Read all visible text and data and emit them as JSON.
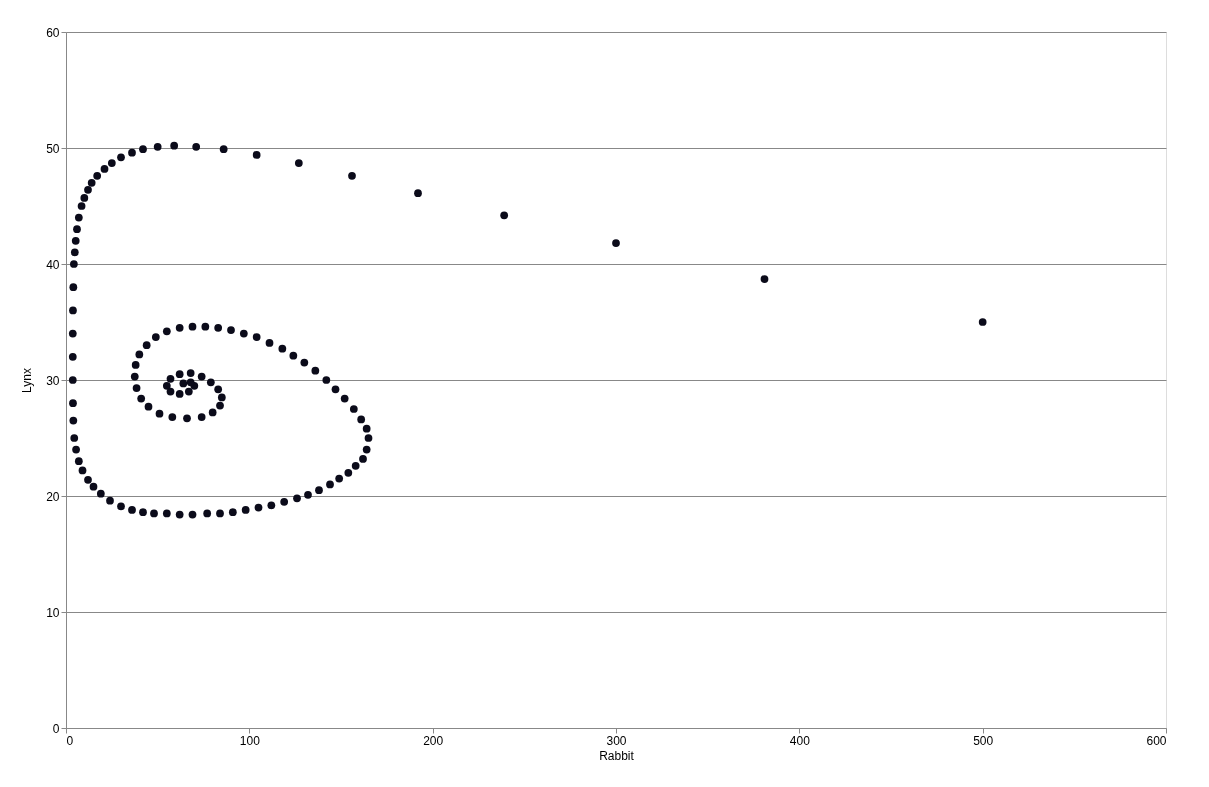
{
  "chart_data": {
    "type": "scatter",
    "xlabel": "Rabbit",
    "ylabel": "Lynx",
    "xlim": [
      0,
      600
    ],
    "ylim": [
      0,
      60
    ],
    "xticks": [
      0,
      100,
      200,
      300,
      400,
      500,
      600
    ],
    "yticks": [
      0,
      10,
      20,
      30,
      40,
      50,
      60
    ],
    "grid": "y",
    "marker": "circle",
    "series": [
      {
        "color": "#0b0b1a",
        "x": [
          500,
          381,
          300,
          239,
          192,
          156,
          127,
          104,
          86,
          71,
          59,
          50,
          42,
          36,
          30,
          25,
          21,
          17,
          14,
          12,
          10,
          8.5,
          7,
          6,
          5.3,
          4.8,
          4.3,
          4,
          3.8,
          3.7,
          3.7,
          3.7,
          3.8,
          4,
          4.5,
          5.5,
          7,
          9,
          12,
          15,
          19,
          24,
          30,
          36,
          42,
          48,
          55,
          62,
          69,
          77,
          84,
          91,
          98,
          105,
          112,
          119,
          126,
          132,
          138,
          144,
          149,
          154,
          158,
          162,
          164,
          165,
          164,
          161,
          157,
          152,
          147,
          142,
          136,
          130,
          124,
          118,
          111,
          104,
          97,
          90,
          83,
          76,
          69,
          62,
          55,
          49,
          44,
          40,
          38,
          37.5,
          38.5,
          41,
          45,
          51,
          58,
          66,
          74,
          80,
          84,
          85,
          83,
          79,
          74,
          68,
          62,
          57,
          55,
          57,
          62,
          67,
          70,
          68,
          64
        ],
        "values": [
          35,
          38.7,
          41.8,
          44.2,
          46.1,
          47.6,
          48.7,
          49.4,
          49.9,
          50.1,
          50.2,
          50.1,
          49.9,
          49.6,
          49.2,
          48.7,
          48.2,
          47.6,
          47,
          46.4,
          45.7,
          45,
          44,
          43,
          42,
          41,
          40,
          38,
          36,
          34,
          32,
          30,
          28,
          26.5,
          25,
          24,
          23,
          22.2,
          21.4,
          20.8,
          20.2,
          19.6,
          19.1,
          18.8,
          18.6,
          18.5,
          18.5,
          18.4,
          18.4,
          18.5,
          18.5,
          18.6,
          18.8,
          19,
          19.2,
          19.5,
          19.8,
          20.1,
          20.5,
          21,
          21.5,
          22,
          22.6,
          23.2,
          24,
          25,
          25.8,
          26.6,
          27.5,
          28.4,
          29.2,
          30,
          30.8,
          31.5,
          32.1,
          32.7,
          33.2,
          33.7,
          34,
          34.3,
          34.5,
          34.6,
          34.6,
          34.5,
          34.2,
          33.7,
          33,
          32.2,
          31.3,
          30.3,
          29.3,
          28.4,
          27.7,
          27.1,
          26.8,
          26.7,
          26.8,
          27.2,
          27.8,
          28.5,
          29.2,
          29.8,
          30.3,
          30.6,
          30.5,
          30.1,
          29.5,
          29,
          28.8,
          29,
          29.5,
          29.8,
          29.7
        ]
      }
    ]
  }
}
